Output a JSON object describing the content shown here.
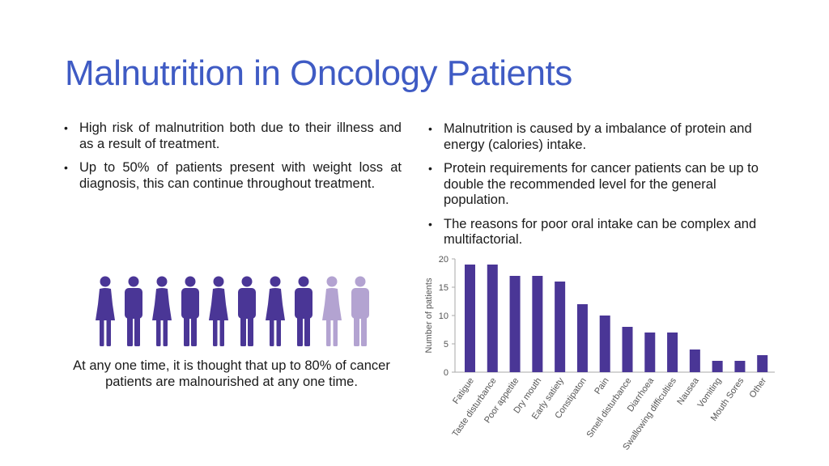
{
  "slide": {
    "title": "Malnutrition in Oncology Patients",
    "left_bullets": [
      "High risk of malnutrition both due to their illness and as a result of treatment.",
      "Up to 50% of patients present with weight loss at diagnosis, this can continue throughout treatment."
    ],
    "right_bullets": [
      "Malnutrition is caused by a imbalance of protein and energy (calories) intake.",
      "Protein requirements for cancer patients can be up to double the recommended level for the general population.",
      "The reasons for poor oral intake can be complex and multifactorial."
    ],
    "caption": "At any one time, it is thought that up to 80% of cancer patients are malnourished at any one time.",
    "people": {
      "total": 10,
      "highlighted": 8,
      "highlight_color": "#4a3696",
      "muted_color": "#b3a3d1"
    },
    "bullet_glyph": "•"
  },
  "chart_data": {
    "type": "bar",
    "categories": [
      "Fatigue",
      "Taste disturbance",
      "Poor appetite",
      "Dry mouth",
      "Early satiety",
      "Constipaton",
      "Pain",
      "Smell disturbance",
      "Diarrhoea",
      "Swallowing difficulties",
      "Nausea",
      "Vomiting",
      "Mouth Sores",
      "Other"
    ],
    "values": [
      19,
      19,
      17,
      17,
      16,
      12,
      10,
      8,
      7,
      7,
      4,
      2,
      2,
      3
    ],
    "yticks": [
      "0",
      "5",
      "10",
      "15",
      "20"
    ],
    "ylim": [
      0,
      20
    ],
    "ylabel": "Number of patients",
    "xlabel": "",
    "title": "",
    "bar_color": "#4a3696",
    "grid": false
  }
}
